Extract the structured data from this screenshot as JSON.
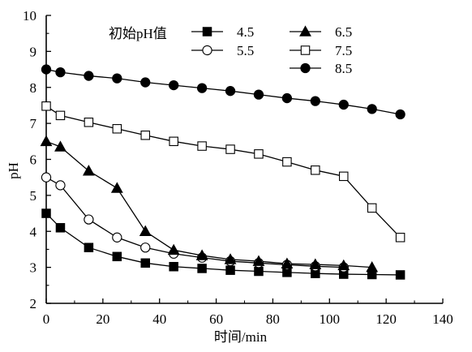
{
  "chart_data": {
    "type": "line",
    "xlabel": "时间/min",
    "ylabel": "pH",
    "xlim": [
      0,
      140
    ],
    "ylim": [
      2,
      10
    ],
    "xticks": [
      0,
      20,
      40,
      60,
      80,
      100,
      120,
      140
    ],
    "yticks": [
      2,
      3,
      4,
      5,
      6,
      7,
      8,
      9,
      10
    ],
    "grid": false,
    "legend": {
      "title": "初始pH值",
      "placement": "top-right"
    },
    "series": [
      {
        "name": "4.5",
        "marker": "square-filled",
        "x": [
          0,
          5,
          15,
          25,
          35,
          45,
          55,
          65,
          75,
          85,
          95,
          105,
          115,
          125
        ],
        "y": [
          4.5,
          4.1,
          3.55,
          3.3,
          3.12,
          3.02,
          2.97,
          2.92,
          2.89,
          2.86,
          2.83,
          2.81,
          2.8,
          2.79
        ]
      },
      {
        "name": "5.5",
        "marker": "circle-open",
        "x": [
          0,
          5,
          15,
          25,
          35,
          45,
          55,
          65,
          75,
          85,
          95,
          105
        ],
        "y": [
          5.5,
          5.28,
          4.33,
          3.83,
          3.55,
          3.38,
          3.27,
          3.17,
          3.12,
          3.07,
          3.03,
          3.0
        ]
      },
      {
        "name": "6.5",
        "marker": "triangle-filled",
        "x": [
          0,
          5,
          15,
          25,
          35,
          45,
          55,
          65,
          75,
          85,
          95,
          105,
          115
        ],
        "y": [
          6.5,
          6.35,
          5.68,
          5.2,
          4.0,
          3.48,
          3.33,
          3.22,
          3.17,
          3.1,
          3.08,
          3.05,
          3.0
        ]
      },
      {
        "name": "7.5",
        "marker": "square-open",
        "x": [
          0,
          5,
          15,
          25,
          35,
          45,
          55,
          65,
          75,
          85,
          95,
          105,
          115,
          125
        ],
        "y": [
          7.48,
          7.22,
          7.03,
          6.85,
          6.67,
          6.5,
          6.37,
          6.28,
          6.15,
          5.93,
          5.7,
          5.53,
          4.65,
          3.83
        ]
      },
      {
        "name": "8.5",
        "marker": "circle-filled",
        "x": [
          0,
          5,
          15,
          25,
          35,
          45,
          55,
          65,
          75,
          85,
          95,
          105,
          115,
          125
        ],
        "y": [
          8.5,
          8.42,
          8.32,
          8.25,
          8.14,
          8.06,
          7.98,
          7.9,
          7.8,
          7.7,
          7.62,
          7.52,
          7.4,
          7.25
        ]
      }
    ]
  }
}
